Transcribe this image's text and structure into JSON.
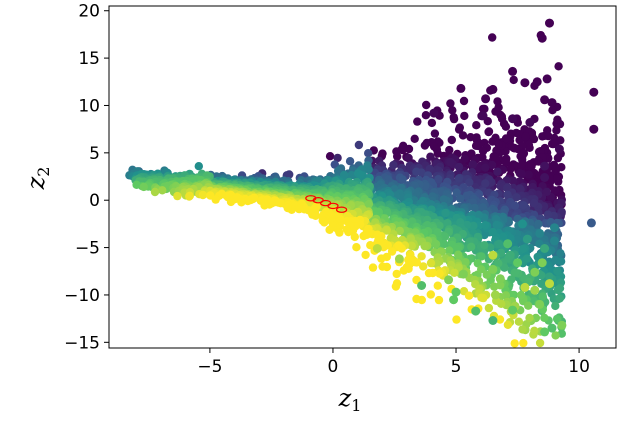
{
  "chart_data": {
    "type": "scatter",
    "title": "",
    "xlabel": "z",
    "xlabel_sub": "1",
    "ylabel": "z",
    "ylabel_sub": "2",
    "xlim": [
      -9.1,
      11.5
    ],
    "ylim": [
      -15.6,
      20.5
    ],
    "x_ticks": [
      -5,
      0,
      5,
      10
    ],
    "x_tick_labels": [
      "−5",
      "0",
      "5",
      "10"
    ],
    "y_ticks": [
      -15,
      -10,
      -5,
      0,
      5,
      10,
      15,
      20
    ],
    "y_tick_labels": [
      "−15",
      "−10",
      "−5",
      "0",
      "5",
      "10",
      "15",
      "20"
    ],
    "grid": false,
    "colormap": "viridis",
    "colormap_stops": [
      "#440154",
      "#3b528b",
      "#21918c",
      "#5ec962",
      "#fde725"
    ],
    "marker_color_highlight": "#ff0000",
    "highlighted_points": [
      {
        "x": -0.9,
        "y": 0.2
      },
      {
        "x": -0.6,
        "y": 0.0
      },
      {
        "x": -0.3,
        "y": -0.3
      },
      {
        "x": 0.0,
        "y": -0.6
      },
      {
        "x": 0.35,
        "y": -1.0
      }
    ],
    "outlier_points": [
      {
        "x": 8.8,
        "y": 18.7,
        "c": 0.0
      },
      {
        "x": 8.5,
        "y": 17.1,
        "c": 0.0
      },
      {
        "x": 7.3,
        "y": 13.6,
        "c": 0.0
      },
      {
        "x": 7.8,
        "y": 12.4,
        "c": 0.0
      },
      {
        "x": 8.3,
        "y": 12.5,
        "c": 0.0
      },
      {
        "x": 8.7,
        "y": 12.8,
        "c": 0.0
      },
      {
        "x": 10.6,
        "y": 11.4,
        "c": 0.0
      },
      {
        "x": 5.2,
        "y": 11.8,
        "c": 0.0
      },
      {
        "x": 6.5,
        "y": 11.7,
        "c": 0.0
      },
      {
        "x": 6.2,
        "y": 10.7,
        "c": 0.0
      },
      {
        "x": 8.6,
        "y": 10.6,
        "c": 0.0
      },
      {
        "x": 8.9,
        "y": 10.3,
        "c": 0.0
      },
      {
        "x": 10.6,
        "y": 7.5,
        "c": 0.0
      },
      {
        "x": 7.3,
        "y": 8.6,
        "c": 0.02
      },
      {
        "x": 8.0,
        "y": 8.2,
        "c": 0.02
      },
      {
        "x": 4.1,
        "y": 9.2,
        "c": 0.02
      },
      {
        "x": 6.1,
        "y": 8.9,
        "c": 0.02
      },
      {
        "x": 9.2,
        "y": 5.4,
        "c": 0.02
      },
      {
        "x": 8.6,
        "y": 3.6,
        "c": 0.05
      },
      {
        "x": 8.6,
        "y": 2.4,
        "c": 0.05
      },
      {
        "x": 10.5,
        "y": -2.4,
        "c": 0.28
      },
      {
        "x": 9.0,
        "y": -2.9,
        "c": 0.45
      },
      {
        "x": 9.0,
        "y": -4.3,
        "c": 0.45
      },
      {
        "x": 8.4,
        "y": -3.5,
        "c": 0.45
      },
      {
        "x": 7.9,
        "y": -4.1,
        "c": 0.55
      },
      {
        "x": 7.7,
        "y": -2.5,
        "c": 0.5
      },
      {
        "x": 8.6,
        "y": -5.1,
        "c": 0.6
      },
      {
        "x": 7.2,
        "y": -5.8,
        "c": 0.62
      },
      {
        "x": 7.5,
        "y": -6.6,
        "c": 0.75
      },
      {
        "x": 8.5,
        "y": -6.6,
        "c": 0.8
      },
      {
        "x": 8.2,
        "y": -7.6,
        "c": 0.8
      },
      {
        "x": 5.3,
        "y": -7.8,
        "c": 0.8
      },
      {
        "x": 6.5,
        "y": -7.3,
        "c": 0.8
      },
      {
        "x": 6.8,
        "y": -8.3,
        "c": 0.8
      },
      {
        "x": 4.7,
        "y": -8.4,
        "c": 0.8
      },
      {
        "x": 3.6,
        "y": -9.0,
        "c": 0.7
      },
      {
        "x": 5.0,
        "y": -9.7,
        "c": 0.75
      },
      {
        "x": 4.9,
        "y": -10.5,
        "c": 0.75
      },
      {
        "x": 6.6,
        "y": -10.0,
        "c": 0.85
      },
      {
        "x": 7.8,
        "y": -9.2,
        "c": 0.9
      },
      {
        "x": 8.2,
        "y": -9.5,
        "c": 0.85
      },
      {
        "x": 8.8,
        "y": -8.8,
        "c": 0.9
      },
      {
        "x": 7.4,
        "y": -11.2,
        "c": 0.85
      },
      {
        "x": 7.3,
        "y": -11.6,
        "c": 0.75
      },
      {
        "x": 8.4,
        "y": -11.0,
        "c": 0.8
      },
      {
        "x": 5.8,
        "y": -11.7,
        "c": 0.7
      },
      {
        "x": 6.5,
        "y": -12.7,
        "c": 0.65
      },
      {
        "x": 8.9,
        "y": -13.5,
        "c": 0.7
      },
      {
        "x": 8.6,
        "y": -13.9,
        "c": 0.75
      },
      {
        "x": 9.3,
        "y": -13.2,
        "c": 0.8
      },
      {
        "x": 1.8,
        "y": -5.1,
        "c": 0.9
      },
      {
        "x": 2.7,
        "y": -6.2,
        "c": 0.85
      },
      {
        "x": 6.5,
        "y": -5.8,
        "c": 0.9
      },
      {
        "x": 7.1,
        "y": -4.6,
        "c": 0.7
      }
    ]
  }
}
